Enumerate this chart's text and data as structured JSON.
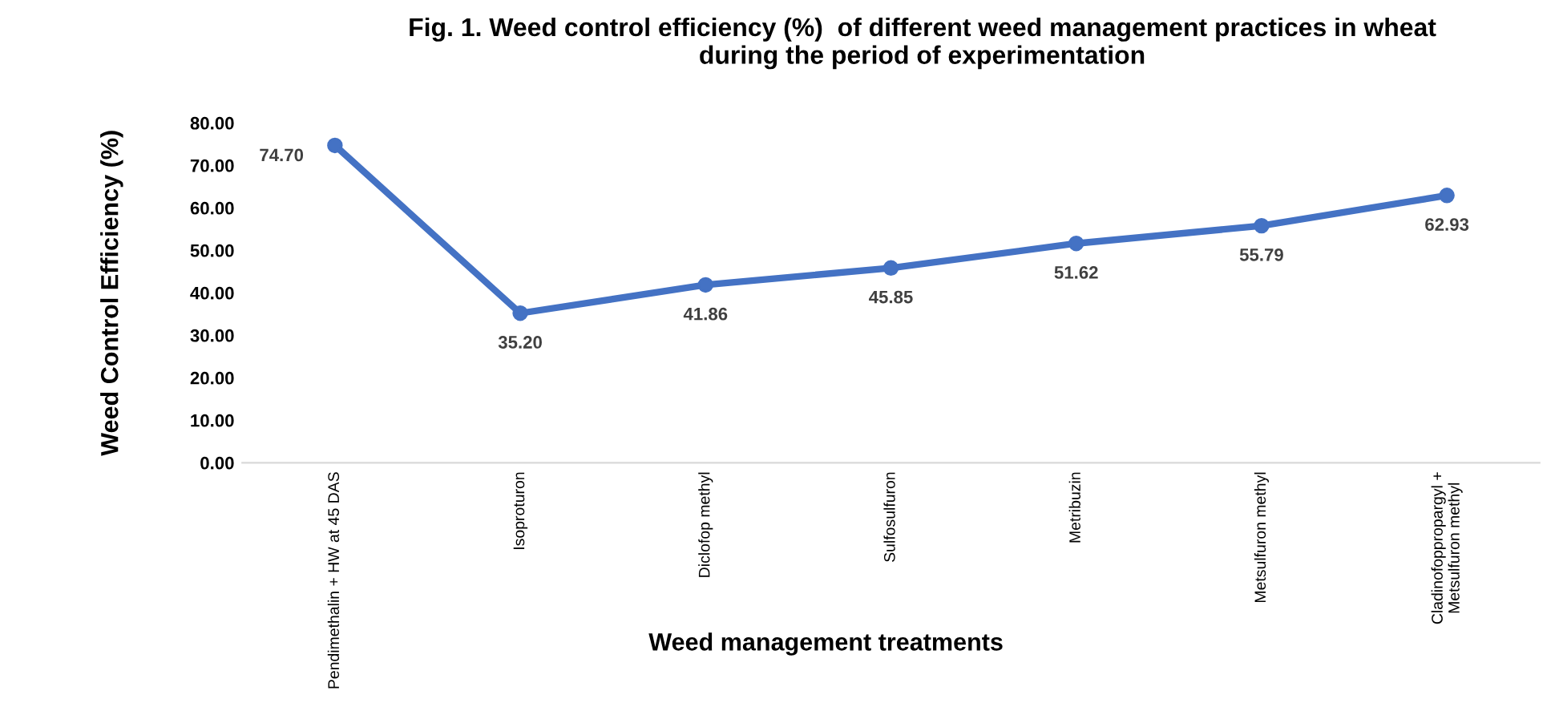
{
  "chart_data": {
    "type": "line",
    "title": "Fig. 1. Weed control efficiency (%)  of different weed management practices in wheat\nduring the period of experimentation",
    "xlabel": "Weed management treatments",
    "ylabel": "Weed Control Efficiency (%)",
    "categories": [
      "Pendimethalin + HW at 45 DAS",
      "Isoproturon",
      "Diclofop methyl",
      "Sulfosulfuron",
      "Metribuzin",
      "Metsulfuron methyl",
      "Cladinofoppropargyl +\nMetsulfuron methyl"
    ],
    "series": [
      {
        "color": "#4472c4",
        "values": [
          74.7,
          35.2,
          41.86,
          45.85,
          51.62,
          55.79,
          62.93
        ],
        "value_labels": [
          "74.70",
          "35.20",
          "41.86",
          "45.85",
          "51.62",
          "55.79",
          "62.93"
        ]
      }
    ],
    "ylim": [
      0,
      80
    ],
    "yticks": [
      {
        "value": 0,
        "label": "0.00"
      },
      {
        "value": 10,
        "label": "10.00"
      },
      {
        "value": 20,
        "label": "20.00"
      },
      {
        "value": 30,
        "label": "30.00"
      },
      {
        "value": 40,
        "label": "40.00"
      },
      {
        "value": 50,
        "label": "50.00"
      },
      {
        "value": 60,
        "label": "60.00"
      },
      {
        "value": 70,
        "label": "70.00"
      },
      {
        "value": 80,
        "label": "80.00"
      }
    ],
    "marker": "circle",
    "line_style": "solid",
    "grid": false,
    "legend": false
  }
}
